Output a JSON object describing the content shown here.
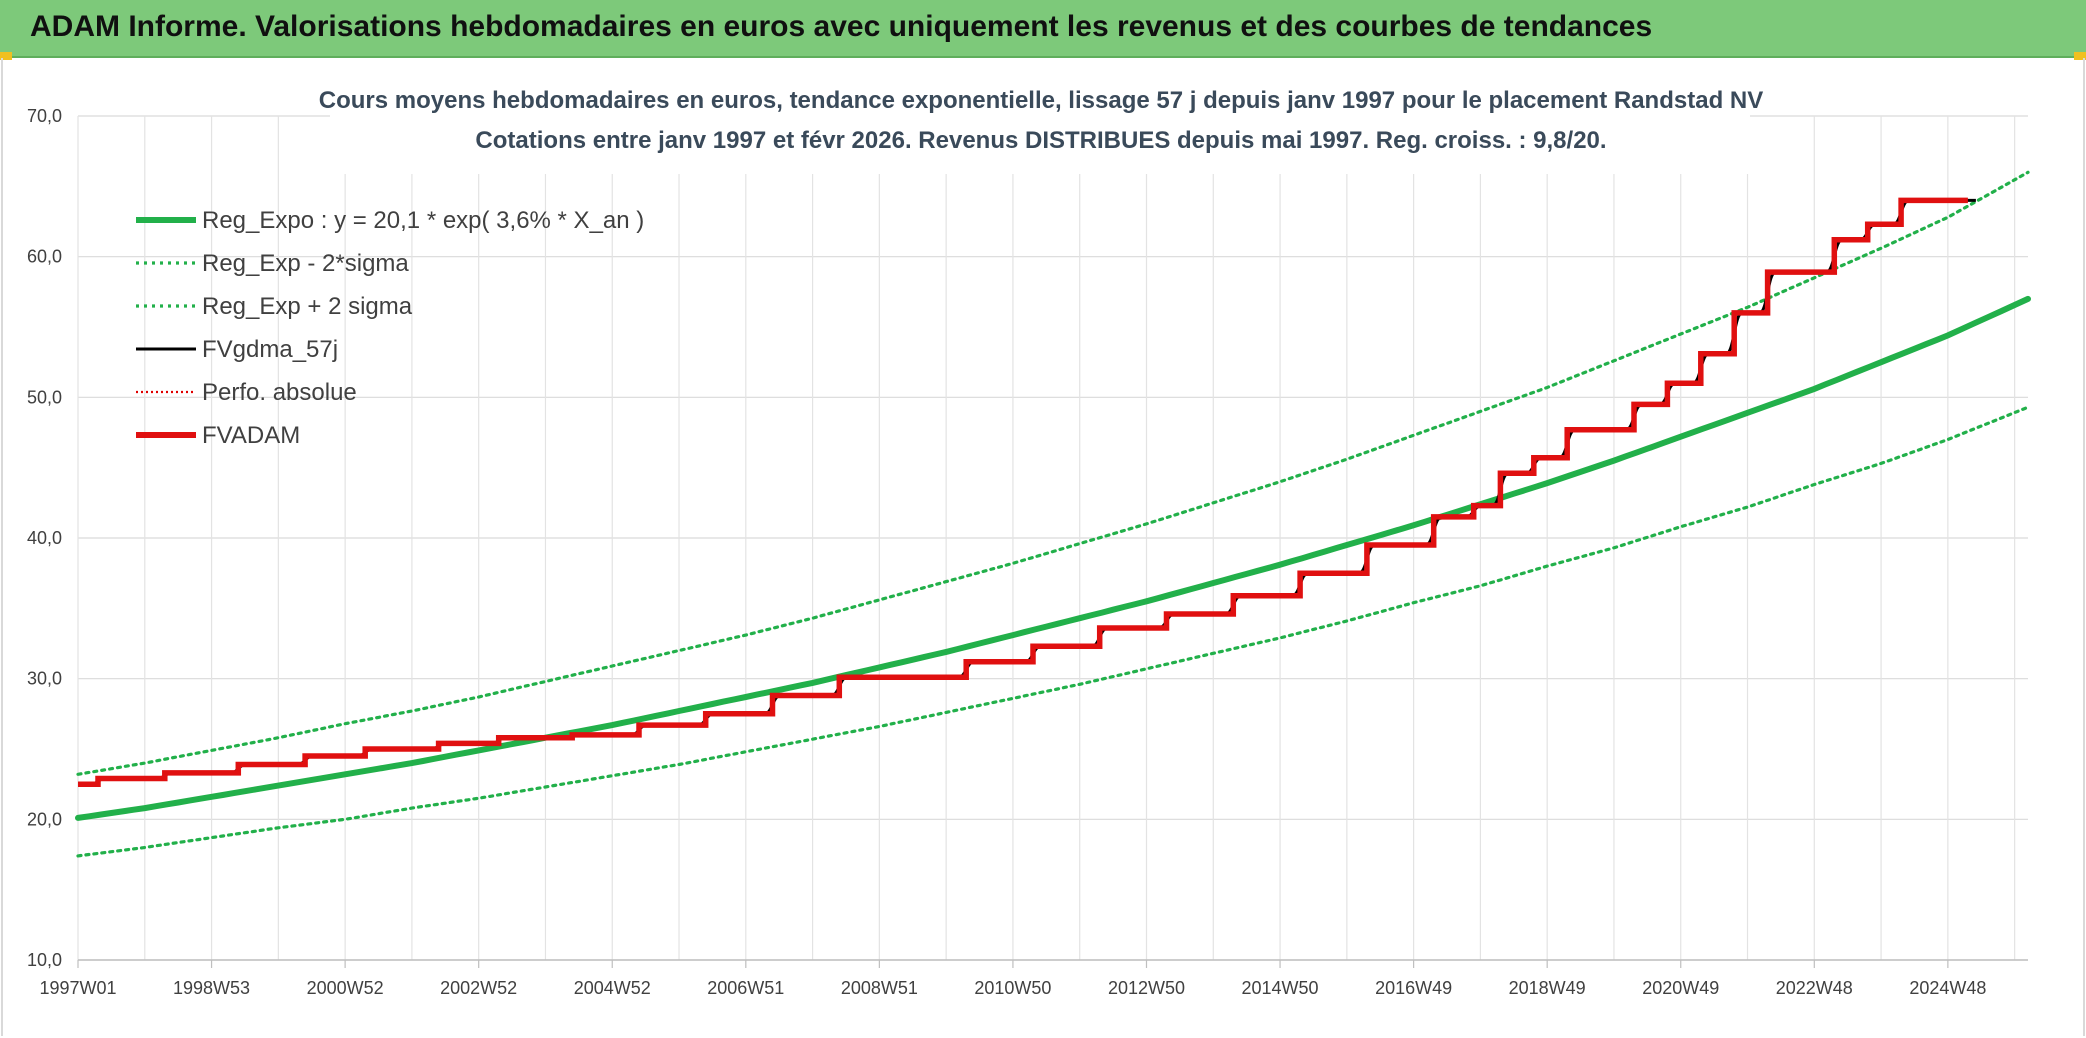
{
  "header": {
    "title": "ADAM Informe. Valorisations hebdomadaires en euros avec uniquement les revenus et des courbes de tendances"
  },
  "chart_data": {
    "type": "line",
    "title": "Cours moyens hebdomadaires en euros, tendance exponentielle, lissage 57 j depuis janv 1997 pour le placement Randstad NV",
    "subtitle": "Cotations entre janv 1997 et févr 2026. Revenus DISTRIBUES depuis mai 1997. Reg. croiss. : 9,8/20.",
    "ylim": [
      10,
      70
    ],
    "y_ticks": [
      "10,0",
      "20,0",
      "30,0",
      "40,0",
      "50,0",
      "60,0",
      "70,0"
    ],
    "x_tick_labels": [
      "1997W01",
      "1998W53",
      "2000W52",
      "2002W52",
      "2004W52",
      "2006W51",
      "2008W51",
      "2010W50",
      "2012W50",
      "2014W50",
      "2016W49",
      "2018W49",
      "2020W49",
      "2022W48",
      "2024W48"
    ],
    "grid": true,
    "legend_position": "top-left",
    "x_years": [
      1997,
      1998,
      1999,
      2000,
      2001,
      2002,
      2003,
      2004,
      2005,
      2006,
      2007,
      2008,
      2009,
      2010,
      2011,
      2012,
      2013,
      2014,
      2015,
      2016,
      2017,
      2018,
      2019,
      2020,
      2021,
      2022,
      2023,
      2024,
      2025,
      2026
    ],
    "series": [
      {
        "name": "Reg_Expo : y = 20,1 * exp( 3,6% *  X_an )",
        "color": "#22b04a",
        "style": "solid-thick",
        "values": [
          20.1,
          20.8,
          21.6,
          22.4,
          23.2,
          24.0,
          24.9,
          25.8,
          26.7,
          27.7,
          28.7,
          29.7,
          30.8,
          31.9,
          33.1,
          34.3,
          35.5,
          36.8,
          38.1,
          39.5,
          40.9,
          42.4,
          43.9,
          45.5,
          47.2,
          48.9,
          50.6,
          52.5,
          54.4,
          57.0
        ]
      },
      {
        "name": "Reg_Exp - 2*sigma",
        "color": "#22b04a",
        "style": "dotted",
        "values": [
          17.4,
          18.0,
          18.7,
          19.4,
          20.0,
          20.8,
          21.5,
          22.3,
          23.1,
          23.9,
          24.8,
          25.7,
          26.6,
          27.6,
          28.6,
          29.6,
          30.7,
          31.8,
          32.9,
          34.1,
          35.4,
          36.6,
          38.0,
          39.3,
          40.8,
          42.2,
          43.8,
          45.3,
          47.0,
          49.3
        ]
      },
      {
        "name": "Reg_Exp + 2 sigma",
        "color": "#22b04a",
        "style": "dotted",
        "values": [
          23.2,
          24.0,
          24.9,
          25.8,
          26.8,
          27.7,
          28.7,
          29.8,
          30.9,
          32.0,
          33.1,
          34.3,
          35.6,
          36.9,
          38.2,
          39.6,
          41.0,
          42.5,
          44.0,
          45.6,
          47.3,
          49.0,
          50.7,
          52.6,
          54.5,
          56.4,
          58.5,
          60.6,
          62.8,
          66.0
        ]
      },
      {
        "name": "FVgdma_57j",
        "color": "#000000",
        "style": "solid"
      },
      {
        "name": "Perfo. absolue",
        "color": "#e00000",
        "style": "dotted-red"
      },
      {
        "name": "FVADAM",
        "color": "#e01010",
        "style": "step-thick",
        "steps": [
          [
            1997.0,
            22.5
          ],
          [
            1997.3,
            22.9
          ],
          [
            1998.3,
            23.3
          ],
          [
            1999.4,
            23.9
          ],
          [
            2000.4,
            24.5
          ],
          [
            2001.3,
            25.0
          ],
          [
            2002.4,
            25.4
          ],
          [
            2003.3,
            25.8
          ],
          [
            2004.4,
            26.0
          ],
          [
            2005.4,
            26.7
          ],
          [
            2006.4,
            27.5
          ],
          [
            2007.4,
            28.8
          ],
          [
            2008.4,
            30.1
          ],
          [
            2010.3,
            31.2
          ],
          [
            2011.3,
            32.3
          ],
          [
            2012.3,
            33.6
          ],
          [
            2013.3,
            34.6
          ],
          [
            2014.3,
            35.9
          ],
          [
            2015.3,
            37.5
          ],
          [
            2016.3,
            39.5
          ],
          [
            2017.3,
            41.5
          ],
          [
            2017.9,
            42.3
          ],
          [
            2018.3,
            44.6
          ],
          [
            2018.8,
            45.7
          ],
          [
            2019.3,
            47.7
          ],
          [
            2020.3,
            49.5
          ],
          [
            2020.8,
            51.0
          ],
          [
            2021.3,
            53.1
          ],
          [
            2021.8,
            56.0
          ],
          [
            2022.3,
            58.9
          ],
          [
            2023.3,
            61.2
          ],
          [
            2023.8,
            62.3
          ],
          [
            2024.3,
            64.0
          ],
          [
            2025.3,
            64.0
          ]
        ]
      }
    ]
  }
}
